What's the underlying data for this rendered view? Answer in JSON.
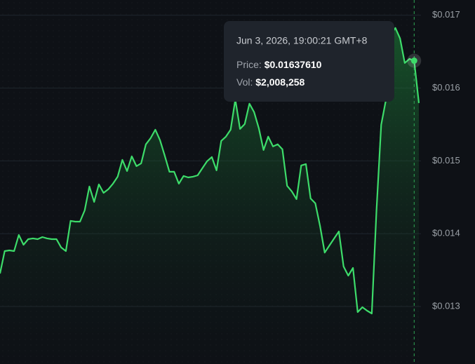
{
  "chart_data": {
    "type": "line",
    "series": [
      {
        "color": "#3ddc6a",
        "values": [
          0.013453,
          0.013761,
          0.013771,
          0.013761,
          0.013983,
          0.013848,
          0.013925,
          0.013935,
          0.013925,
          0.013954,
          0.013935,
          0.013925,
          0.013925,
          0.01381,
          0.013761,
          0.014176,
          0.014166,
          0.014166,
          0.01432,
          0.014648,
          0.014436,
          0.014677,
          0.014561,
          0.01461,
          0.014687,
          0.014783,
          0.015014,
          0.01486,
          0.015063,
          0.014928,
          0.014966,
          0.015227,
          0.015313,
          0.015429,
          0.015284,
          0.015072,
          0.014851,
          0.014851,
          0.014687,
          0.014793,
          0.014773,
          0.014783,
          0.014802,
          0.014899,
          0.014995,
          0.015053,
          0.01487,
          0.015275,
          0.015333,
          0.015429,
          0.015843,
          0.015439,
          0.015506,
          0.015786,
          0.01567,
          0.015448,
          0.015149,
          0.015333,
          0.015198,
          0.015227,
          0.015159,
          0.014658,
          0.014581,
          0.014475,
          0.014937,
          0.014957,
          0.014484,
          0.014417,
          0.014108,
          0.01374,
          0.013839,
          0.013935,
          0.014031,
          0.013549,
          0.013424,
          0.01353,
          0.012923,
          0.01299,
          0.012942,
          0.012904,
          0.01432,
          0.015496,
          0.015834,
          0.01673,
          0.016827,
          0.016682,
          0.016345,
          0.016402,
          0.0163761,
          0.015795
        ]
      }
    ],
    "ylim": [
      0.01221,
      0.01721
    ],
    "yticks": [
      {
        "value": 0.013,
        "label": "$0.013"
      },
      {
        "value": 0.014,
        "label": "$0.014"
      },
      {
        "value": 0.015,
        "label": "$0.015"
      },
      {
        "value": 0.016,
        "label": "$0.016"
      },
      {
        "value": 0.017,
        "label": "$0.017"
      }
    ],
    "grid": true,
    "tooltip": {
      "date": "Jun 3, 2026, 19:00:21 GMT+8",
      "price_label": "Price:",
      "price": "$0.01637610",
      "vol_label": "Vol:",
      "vol": "$2,008,258"
    }
  }
}
